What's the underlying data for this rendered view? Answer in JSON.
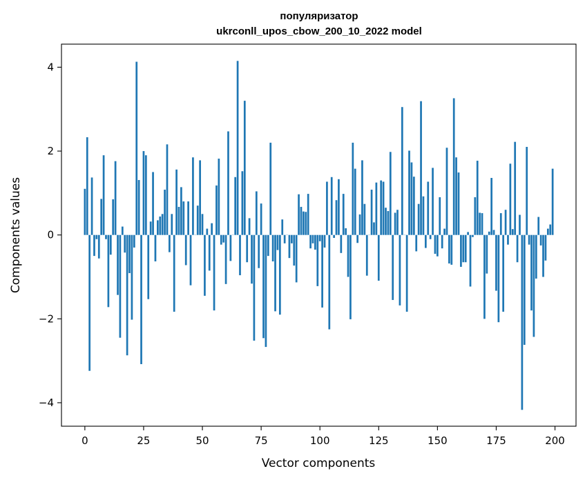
{
  "chart_data": {
    "type": "bar",
    "title": "популяризатор",
    "subtitle": "ukrconll_upos_cbow_200_10_2022 model",
    "xlabel": "Vector components",
    "ylabel": "Components values",
    "xlim": [
      -9.95,
      208.95
    ],
    "ylim": [
      -4.56,
      4.55
    ],
    "xticks": [
      0,
      25,
      50,
      75,
      100,
      125,
      150,
      175,
      200
    ],
    "xtick_labels": [
      "0",
      "25",
      "50",
      "75",
      "100",
      "125",
      "150",
      "175",
      "200"
    ],
    "yticks": [
      -4,
      -2,
      0,
      2,
      4
    ],
    "ytick_labels": [
      "−4",
      "−2",
      "0",
      "2",
      "4"
    ],
    "grid": false,
    "bar_color": "#1f77b4",
    "x": [
      0,
      1,
      2,
      3,
      4,
      5,
      6,
      7,
      8,
      9,
      10,
      11,
      12,
      13,
      14,
      15,
      16,
      17,
      18,
      19,
      20,
      21,
      22,
      23,
      24,
      25,
      26,
      27,
      28,
      29,
      30,
      31,
      32,
      33,
      34,
      35,
      36,
      37,
      38,
      39,
      40,
      41,
      42,
      43,
      44,
      45,
      46,
      47,
      48,
      49,
      50,
      51,
      52,
      53,
      54,
      55,
      56,
      57,
      58,
      59,
      60,
      61,
      62,
      63,
      64,
      65,
      66,
      67,
      68,
      69,
      70,
      71,
      72,
      73,
      74,
      75,
      76,
      77,
      78,
      79,
      80,
      81,
      82,
      83,
      84,
      85,
      86,
      87,
      88,
      89,
      90,
      91,
      92,
      93,
      94,
      95,
      96,
      97,
      98,
      99,
      100,
      101,
      102,
      103,
      104,
      105,
      106,
      107,
      108,
      109,
      110,
      111,
      112,
      113,
      114,
      115,
      116,
      117,
      118,
      119,
      120,
      121,
      122,
      123,
      124,
      125,
      126,
      127,
      128,
      129,
      130,
      131,
      132,
      133,
      134,
      135,
      136,
      137,
      138,
      139,
      140,
      141,
      142,
      143,
      144,
      145,
      146,
      147,
      148,
      149,
      150,
      151,
      152,
      153,
      154,
      155,
      156,
      157,
      158,
      159,
      160,
      161,
      162,
      163,
      164,
      165,
      166,
      167,
      168,
      169,
      170,
      171,
      172,
      173,
      174,
      175,
      176,
      177,
      178,
      179,
      180,
      181,
      182,
      183,
      184,
      185,
      186,
      187,
      188,
      189,
      190,
      191,
      192,
      193,
      194,
      195,
      196,
      197,
      198,
      199
    ],
    "values": [
      1.1,
      2.33,
      -3.24,
      1.37,
      -0.5,
      -0.1,
      -0.56,
      0.86,
      1.9,
      -0.1,
      -1.72,
      -0.47,
      0.85,
      1.76,
      -1.43,
      -2.45,
      0.2,
      -0.42,
      -2.87,
      -0.91,
      -2.02,
      -0.3,
      4.13,
      1.31,
      -3.08,
      2.0,
      1.9,
      -1.53,
      0.32,
      1.5,
      -0.63,
      0.35,
      0.44,
      0.5,
      1.08,
      2.16,
      -0.41,
      0.5,
      -1.83,
      1.56,
      0.67,
      1.14,
      0.8,
      -0.72,
      0.8,
      -1.2,
      1.85,
      0.0,
      0.7,
      1.78,
      0.5,
      -1.45,
      0.15,
      -0.85,
      0.28,
      -1.8,
      1.18,
      1.82,
      -0.23,
      -0.18,
      -1.17,
      2.47,
      -0.62,
      0.0,
      1.38,
      4.15,
      -0.96,
      1.52,
      3.2,
      -0.65,
      0.4,
      -1.16,
      -2.52,
      1.04,
      -0.79,
      0.75,
      -2.46,
      -2.67,
      -0.5,
      2.2,
      -0.63,
      -1.82,
      -0.36,
      -1.9,
      0.37,
      -0.2,
      0.0,
      -0.55,
      -0.2,
      -0.73,
      -1.13,
      0.97,
      0.67,
      0.56,
      0.55,
      0.98,
      -0.32,
      -0.2,
      -0.35,
      -1.22,
      -0.15,
      -1.73,
      -0.3,
      1.27,
      -2.25,
      1.38,
      -0.07,
      0.83,
      1.33,
      -0.43,
      0.98,
      0.16,
      -1.0,
      -2.01,
      2.2,
      1.58,
      -0.19,
      0.49,
      1.78,
      0.74,
      -0.97,
      0.0,
      1.08,
      0.3,
      1.25,
      -1.09,
      1.3,
      1.27,
      0.65,
      0.57,
      1.98,
      -1.55,
      0.53,
      0.6,
      -1.68,
      3.05,
      0.0,
      -1.83,
      2.01,
      1.73,
      1.39,
      -0.39,
      0.74,
      3.19,
      0.92,
      -0.31,
      1.27,
      -0.1,
      1.6,
      -0.45,
      -0.51,
      0.9,
      -0.32,
      0.15,
      2.08,
      -0.68,
      -0.71,
      3.26,
      1.85,
      1.49,
      -0.76,
      -0.65,
      -0.65,
      0.07,
      -1.23,
      -0.05,
      0.9,
      1.77,
      0.53,
      0.52,
      -2.0,
      -0.92,
      0.08,
      1.36,
      0.12,
      -1.33,
      -2.08,
      0.52,
      -1.83,
      0.6,
      -0.23,
      1.7,
      0.14,
      2.22,
      -0.65,
      0.48,
      -4.17,
      -2.62,
      2.1,
      -0.23,
      -1.8,
      -2.43,
      -1.04,
      0.43,
      -0.25,
      -1.0,
      -0.61,
      0.15,
      0.25,
      1.58
    ]
  }
}
